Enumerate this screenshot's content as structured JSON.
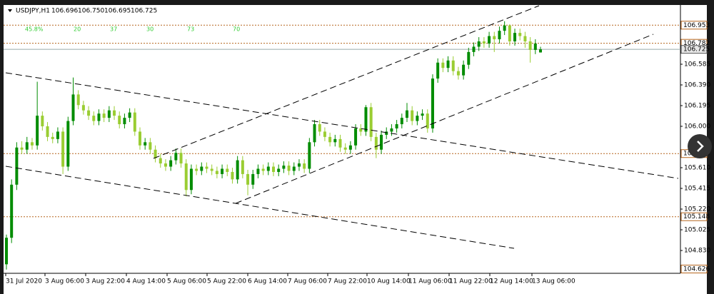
{
  "chart_data": {
    "type": "candlestick",
    "title": "USDJPY,H1",
    "header_prices": [
      {
        "value": 106.696,
        "label": "106.696"
      },
      {
        "value": 106.75,
        "label": "106.750"
      },
      {
        "value": 106.695,
        "label": "106.695"
      },
      {
        "value": 106.725,
        "label": "106.725"
      }
    ],
    "annotations": [
      "45.8%",
      "20",
      "37",
      "30",
      "73",
      "70"
    ],
    "ylim": [
      104.615,
      107.19
    ],
    "yticks": [
      106.585,
      {
        "value": 106.39,
        "label": "106.390"
      },
      106.195,
      {
        "value": 106.0,
        "label": "106.000"
      },
      {
        "value": 105.61,
        "label": "105.610"
      },
      105.415,
      {
        "value": 105.22,
        "label": "105.220"
      },
      105.025,
      {
        "value": 104.83,
        "label": "104.830"
      }
    ],
    "levels": [
      106.953,
      106.782,
      105.743,
      105.148
    ],
    "level_color": "#b5651d",
    "current_price": 106.725,
    "bottom_price": 104.626,
    "bull_color": "#008c00",
    "bear_color": "#9acd32",
    "x_labels": [
      "31 Jul 2020",
      "3 Aug 06:00",
      "3 Aug 22:00",
      "4 Aug 14:00",
      "5 Aug 06:00",
      "5 Aug 22:00",
      "6 Aug 14:00",
      "7 Aug 06:00",
      "7 Aug 22:00",
      "10 Aug 14:00",
      "11 Aug 06:00",
      "11 Aug 22:00",
      "12 Aug 14:00",
      "13 Aug 06:00"
    ],
    "candles": [
      [
        104.7,
        104.98,
        104.65,
        104.95
      ],
      [
        104.95,
        105.5,
        104.9,
        105.45
      ],
      [
        105.45,
        105.85,
        105.4,
        105.8
      ],
      [
        105.8,
        105.86,
        105.74,
        105.78
      ],
      [
        105.78,
        105.9,
        105.74,
        105.85
      ],
      [
        105.85,
        105.89,
        105.78,
        105.82
      ],
      [
        105.82,
        106.42,
        105.78,
        106.1
      ],
      [
        106.1,
        106.14,
        105.96,
        106.0
      ],
      [
        106.0,
        106.04,
        105.86,
        105.9
      ],
      [
        105.9,
        105.94,
        105.84,
        105.88
      ],
      [
        105.88,
        105.99,
        105.84,
        105.95
      ],
      [
        105.95,
        105.99,
        105.55,
        105.62
      ],
      [
        105.62,
        106.09,
        105.58,
        106.05
      ],
      [
        106.05,
        106.46,
        106.01,
        106.3
      ],
      [
        106.3,
        106.34,
        106.16,
        106.2
      ],
      [
        106.2,
        106.24,
        106.11,
        106.15
      ],
      [
        106.15,
        106.19,
        106.06,
        106.1
      ],
      [
        106.1,
        106.14,
        106.01,
        106.05
      ],
      [
        106.05,
        106.16,
        106.01,
        106.12
      ],
      [
        106.12,
        106.16,
        106.04,
        106.08
      ],
      [
        106.08,
        106.19,
        106.04,
        106.15
      ],
      [
        106.15,
        106.19,
        106.06,
        106.1
      ],
      [
        106.1,
        106.14,
        105.98,
        106.02
      ],
      [
        106.02,
        106.12,
        105.98,
        106.08
      ],
      [
        106.08,
        106.17,
        106.04,
        106.13
      ],
      [
        106.13,
        106.17,
        105.91,
        105.95
      ],
      [
        105.95,
        105.99,
        105.78,
        105.82
      ],
      [
        105.82,
        105.89,
        105.78,
        105.85
      ],
      [
        105.85,
        105.89,
        105.74,
        105.78
      ],
      [
        105.78,
        105.82,
        105.66,
        105.7
      ],
      [
        105.7,
        105.74,
        105.61,
        105.65
      ],
      [
        105.65,
        105.69,
        105.58,
        105.62
      ],
      [
        105.62,
        105.72,
        105.58,
        105.68
      ],
      [
        105.68,
        105.79,
        105.64,
        105.75
      ],
      [
        105.75,
        105.79,
        105.61,
        105.65
      ],
      [
        105.65,
        105.69,
        105.34,
        105.4
      ],
      [
        105.4,
        105.64,
        105.36,
        105.6
      ],
      [
        105.6,
        105.64,
        105.54,
        105.58
      ],
      [
        105.58,
        105.66,
        105.54,
        105.62
      ],
      [
        105.62,
        105.66,
        105.56,
        105.6
      ],
      [
        105.6,
        105.64,
        105.54,
        105.58
      ],
      [
        105.58,
        105.62,
        105.51,
        105.55
      ],
      [
        105.55,
        105.64,
        105.51,
        105.6
      ],
      [
        105.6,
        105.64,
        105.53,
        105.57
      ],
      [
        105.57,
        105.61,
        105.46,
        105.5
      ],
      [
        105.5,
        105.72,
        105.46,
        105.68
      ],
      [
        105.68,
        105.72,
        105.51,
        105.55
      ],
      [
        105.55,
        105.59,
        105.35,
        105.45
      ],
      [
        105.45,
        105.59,
        105.41,
        105.55
      ],
      [
        105.55,
        105.64,
        105.51,
        105.6
      ],
      [
        105.6,
        105.64,
        105.54,
        105.58
      ],
      [
        105.58,
        105.66,
        105.54,
        105.62
      ],
      [
        105.62,
        105.66,
        105.53,
        105.57
      ],
      [
        105.57,
        105.64,
        105.53,
        105.6
      ],
      [
        105.6,
        105.67,
        105.56,
        105.63
      ],
      [
        105.63,
        105.67,
        105.54,
        105.58
      ],
      [
        105.58,
        105.66,
        105.54,
        105.62
      ],
      [
        105.62,
        105.69,
        105.58,
        105.65
      ],
      [
        105.65,
        105.69,
        105.56,
        105.6
      ],
      [
        105.6,
        105.89,
        105.56,
        105.85
      ],
      [
        105.85,
        106.06,
        105.81,
        106.02
      ],
      [
        106.02,
        106.06,
        105.91,
        105.95
      ],
      [
        105.95,
        105.99,
        105.86,
        105.9
      ],
      [
        105.9,
        105.94,
        105.81,
        105.85
      ],
      [
        105.85,
        105.92,
        105.81,
        105.88
      ],
      [
        105.88,
        105.92,
        105.76,
        105.8
      ],
      [
        105.8,
        105.84,
        105.74,
        105.78
      ],
      [
        105.78,
        105.86,
        105.74,
        105.82
      ],
      [
        105.82,
        106.02,
        105.78,
        105.98
      ],
      [
        105.98,
        106.02,
        105.91,
        105.95
      ],
      [
        105.95,
        106.2,
        105.91,
        106.18
      ],
      [
        106.18,
        106.22,
        105.86,
        105.9
      ],
      [
        105.9,
        105.94,
        105.7,
        105.78
      ],
      [
        105.78,
        105.96,
        105.74,
        105.92
      ],
      [
        105.92,
        105.99,
        105.88,
        105.95
      ],
      [
        105.95,
        106.02,
        105.91,
        105.98
      ],
      [
        105.98,
        106.06,
        105.94,
        106.02
      ],
      [
        106.02,
        106.12,
        105.98,
        106.08
      ],
      [
        106.08,
        106.22,
        106.04,
        106.15
      ],
      [
        106.15,
        106.19,
        106.01,
        106.05
      ],
      [
        106.05,
        106.14,
        106.01,
        106.1
      ],
      [
        106.1,
        106.16,
        106.06,
        106.12
      ],
      [
        106.12,
        106.16,
        105.94,
        105.98
      ],
      [
        105.98,
        106.49,
        105.94,
        106.45
      ],
      [
        106.45,
        106.64,
        106.41,
        106.6
      ],
      [
        106.6,
        106.64,
        106.51,
        106.55
      ],
      [
        106.55,
        106.66,
        106.51,
        106.62
      ],
      [
        106.62,
        106.66,
        106.48,
        106.52
      ],
      [
        106.52,
        106.56,
        106.44,
        106.48
      ],
      [
        106.48,
        106.62,
        106.44,
        106.58
      ],
      [
        106.58,
        106.74,
        106.54,
        106.7
      ],
      [
        106.7,
        106.79,
        106.66,
        106.75
      ],
      [
        106.75,
        106.84,
        106.71,
        106.8
      ],
      [
        106.8,
        106.84,
        106.74,
        106.78
      ],
      [
        106.78,
        106.89,
        106.74,
        106.85
      ],
      [
        106.85,
        106.89,
        106.7,
        106.82
      ],
      [
        106.82,
        106.94,
        106.78,
        106.9
      ],
      [
        106.9,
        106.99,
        106.86,
        106.95
      ],
      [
        106.95,
        106.96,
        106.76,
        106.8
      ],
      [
        106.8,
        106.92,
        106.76,
        106.88
      ],
      [
        106.88,
        106.92,
        106.81,
        106.85
      ],
      [
        106.85,
        106.89,
        106.74,
        106.8
      ],
      [
        106.8,
        106.84,
        106.6,
        106.72
      ],
      [
        106.72,
        106.82,
        106.68,
        106.78
      ],
      [
        106.696,
        106.75,
        106.695,
        106.725
      ]
    ]
  }
}
